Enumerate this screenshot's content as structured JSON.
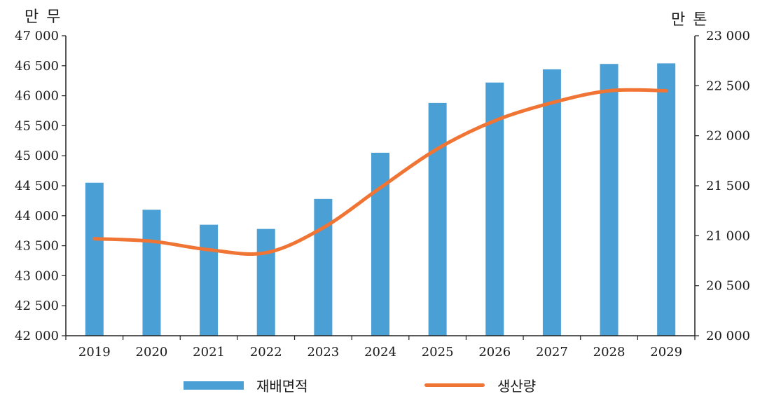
{
  "chart_data": {
    "type": "bar+line",
    "left_unit": "만 무",
    "right_unit": "만 톤",
    "categories": [
      "2019",
      "2020",
      "2021",
      "2022",
      "2023",
      "2024",
      "2025",
      "2026",
      "2027",
      "2028",
      "2029"
    ],
    "series": [
      {
        "name": "재배면적",
        "type": "bar",
        "axis": "left",
        "values": [
          44550,
          44100,
          43850,
          43780,
          44280,
          45050,
          45880,
          46220,
          46440,
          46530,
          46540
        ]
      },
      {
        "name": "생산량",
        "type": "line",
        "axis": "right",
        "values": [
          20970,
          20945,
          20860,
          20830,
          21080,
          21480,
          21870,
          22150,
          22330,
          22450,
          22450
        ]
      }
    ],
    "y_left": {
      "min": 42000,
      "max": 47000,
      "step": 500,
      "tick_labels": [
        "42 000",
        "42 500",
        "43 000",
        "43 500",
        "44 000",
        "44 500",
        "45 000",
        "45 500",
        "46 000",
        "46 500",
        "47 000"
      ]
    },
    "y_right": {
      "min": 20000,
      "max": 23000,
      "step": 500,
      "tick_labels": [
        "20 000",
        "20 500",
        "21 000",
        "21 500",
        "22 000",
        "22 500",
        "23 000"
      ]
    },
    "legend_position": "bottom",
    "grid": false,
    "colors": {
      "bar": "#4a9fd5",
      "line": "#f07535",
      "axis": "#222222"
    }
  }
}
